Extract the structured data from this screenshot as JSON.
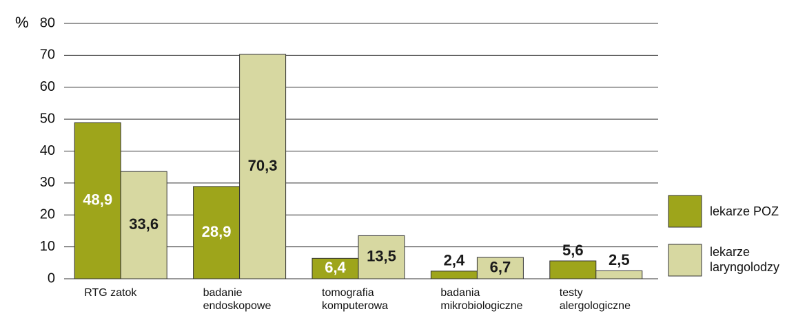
{
  "chart_data": {
    "type": "bar",
    "y_label": "%",
    "categories": [
      "RTG zatok",
      "badanie endoskopowe",
      "tomografia komputerowa",
      "badania mikrobiologiczne",
      "testy alergologiczne"
    ],
    "series": [
      {
        "name": "lekarze POZ",
        "color": "#9ea51b",
        "values": [
          48.9,
          28.9,
          6.4,
          2.4,
          5.6
        ],
        "value_labels": [
          "48,9",
          "28,9",
          "6,4",
          "2,4",
          "5,6"
        ]
      },
      {
        "name": "lekarze laryngolodzy",
        "color": "#d7d8a1",
        "values": [
          33.6,
          70.3,
          13.5,
          6.7,
          2.5
        ],
        "value_labels": [
          "33,6",
          "70,3",
          "13,5",
          "6,7",
          "2,5"
        ]
      }
    ],
    "ylim": [
      0,
      80
    ],
    "yticks": [
      0,
      10,
      20,
      30,
      40,
      50,
      60,
      70,
      80
    ],
    "grid": true
  }
}
